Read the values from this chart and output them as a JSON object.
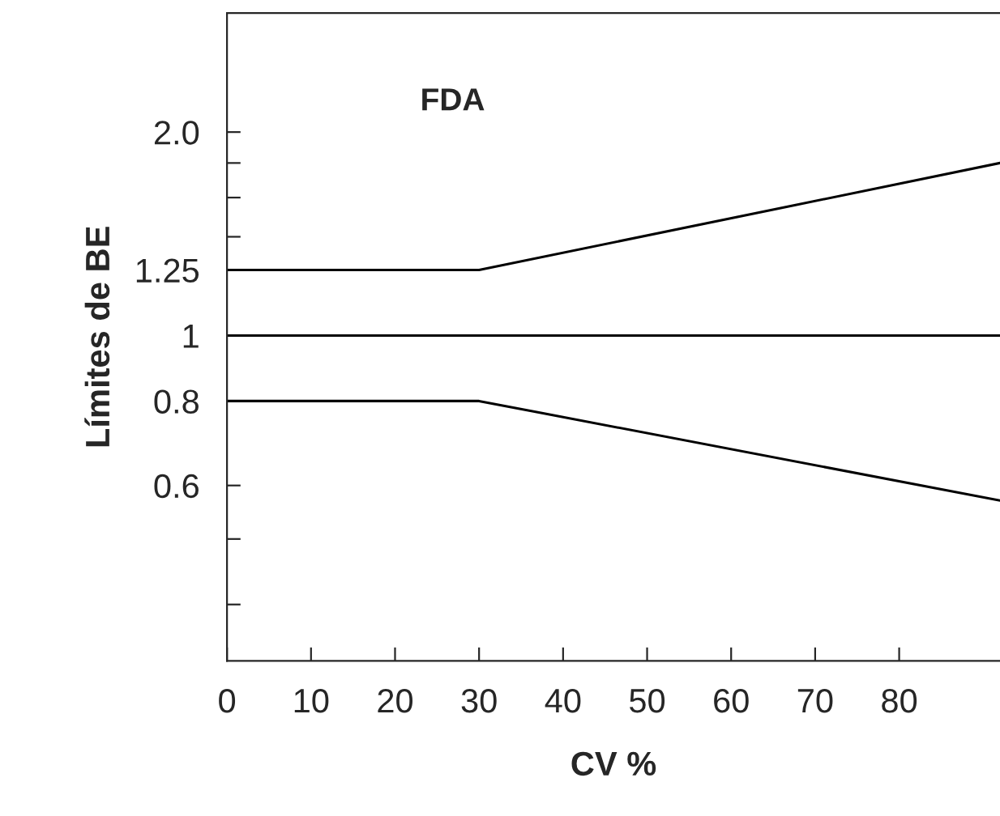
{
  "chart_data": {
    "type": "line",
    "xlabel": "CV %",
    "ylabel": "Límites de BE",
    "annotations": [
      "FDA"
    ],
    "series": [
      {
        "x": [
          0,
          30,
          92
        ],
        "values": [
          1.25,
          1.25,
          1.8
        ],
        "color": "#000000"
      },
      {
        "x": [
          0,
          92
        ],
        "values": [
          1,
          1
        ],
        "color": "#000000"
      },
      {
        "x": [
          0,
          30,
          92
        ],
        "values": [
          0.8,
          0.8,
          0.57
        ],
        "color": "#000000"
      }
    ],
    "log": "y",
    "xlim": [
      0,
      92
    ],
    "ylim": [
      0.33,
      3.0
    ],
    "xticks": [
      0,
      10,
      20,
      30,
      40,
      50,
      60,
      70,
      80
    ],
    "yticks": [
      {
        "value": 0.4,
        "label": null
      },
      {
        "value": 0.5,
        "label": null
      },
      0.6,
      0.8,
      1,
      1.25,
      {
        "value": 1.4,
        "label": null
      },
      {
        "value": 1.6,
        "label": null
      },
      {
        "value": 1.8,
        "label": null
      },
      {
        "value": 2.0,
        "label": "2.0"
      }
    ],
    "grid": false,
    "legend": false,
    "marker": "none",
    "line_style": "solid"
  }
}
